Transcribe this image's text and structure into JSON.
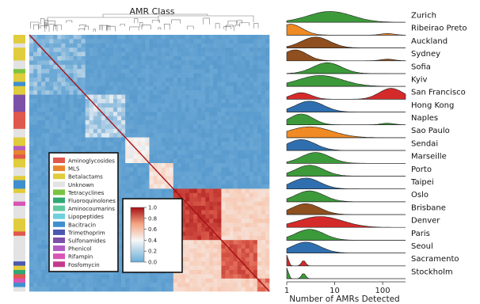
{
  "heatmap": {
    "title": "AMR Class",
    "colorbar": {
      "ticks": [
        "1.0",
        "0.8",
        "0.6",
        "0.4",
        "0.2",
        "0.0"
      ],
      "values": [
        1.0,
        0.8,
        0.6,
        0.4,
        0.2,
        0.0
      ],
      "low_color": "#4a90c8",
      "high_color": "#a50f15"
    },
    "legend": [
      {
        "label": "Aminoglycosides",
        "color": "#e0584c"
      },
      {
        "label": "MLS",
        "color": "#e8862e"
      },
      {
        "label": "Betalactams",
        "color": "#e0cc3c"
      },
      {
        "label": "Unknown",
        "color": "#e3e3e3"
      },
      {
        "label": "Tetracyclines",
        "color": "#7cc242"
      },
      {
        "label": "Fluoroquinolones",
        "color": "#2fa872"
      },
      {
        "label": "Aminocoumarins",
        "color": "#5fc9a0"
      },
      {
        "label": "Lipopeptides",
        "color": "#6fcfe0"
      },
      {
        "label": "Bacitracin",
        "color": "#3f8fcf"
      },
      {
        "label": "Trimethoprim",
        "color": "#4b58b0"
      },
      {
        "label": "Sulfonamides",
        "color": "#7c4fa8"
      },
      {
        "label": "Phenicol",
        "color": "#b05cc4"
      },
      {
        "label": "Rifampin",
        "color": "#d855b5"
      },
      {
        "label": "Fosfomycin",
        "color": "#c43a8f"
      }
    ]
  },
  "ridge": {
    "x_label": "Number of AMRs Detected",
    "x_ticks": [
      "1",
      "10",
      "100"
    ],
    "x_tick_values": [
      1,
      10,
      100
    ],
    "x_scale": "log",
    "x_range": [
      1,
      300
    ]
  },
  "chart_data": {
    "type": "area",
    "subtype": "ridgeline",
    "xlabel": "Number of AMRs Detected",
    "xscale": "log",
    "xlim": [
      1,
      300
    ],
    "series": [
      {
        "name": "Zurich",
        "color": "#3c9a3a",
        "peak": 8,
        "shape": "broad"
      },
      {
        "name": "Ribeirao Preto",
        "color": "#f08a24",
        "peak": 1.2,
        "shape": "left"
      },
      {
        "name": "Auckland",
        "color": "#8f4f1e",
        "peak": 4,
        "shape": "mid"
      },
      {
        "name": "Sydney",
        "color": "#8f4f1e",
        "peak": 1.5,
        "shape": "left"
      },
      {
        "name": "Sofia",
        "color": "#3c9a3a",
        "peak": 7,
        "shape": "mid"
      },
      {
        "name": "Kyiv",
        "color": "#3c9a3a",
        "peak": 5,
        "shape": "broad"
      },
      {
        "name": "San Francisco",
        "color": "#d42a2a",
        "peak": 150,
        "shape": "right"
      },
      {
        "name": "Hong Kong",
        "color": "#2f6fb0",
        "peak": 3,
        "shape": "mid"
      },
      {
        "name": "Naples",
        "color": "#3c9a3a",
        "peak": 2,
        "shape": "left"
      },
      {
        "name": "Sao Paulo",
        "color": "#f08a24",
        "peak": 3,
        "shape": "broad"
      },
      {
        "name": "Sendai",
        "color": "#2f6fb0",
        "peak": 2,
        "shape": "mid"
      },
      {
        "name": "Marseille",
        "color": "#3c9a3a",
        "peak": 4,
        "shape": "mid"
      },
      {
        "name": "Porto",
        "color": "#3c9a3a",
        "peak": 3,
        "shape": "mid"
      },
      {
        "name": "Taipei",
        "color": "#2f6fb0",
        "peak": 2.5,
        "shape": "mid"
      },
      {
        "name": "Oslo",
        "color": "#3c9a3a",
        "peak": 3,
        "shape": "mid"
      },
      {
        "name": "Brisbane",
        "color": "#8f4f1e",
        "peak": 2.5,
        "shape": "mid"
      },
      {
        "name": "Denver",
        "color": "#d42a2a",
        "peak": 5,
        "shape": "broad"
      },
      {
        "name": "Paris",
        "color": "#3c9a3a",
        "peak": 3,
        "shape": "mid"
      },
      {
        "name": "Seoul",
        "color": "#2f6fb0",
        "peak": 2.5,
        "shape": "mid"
      },
      {
        "name": "Sacramento",
        "color": "#d42a2a",
        "peak": 1.1,
        "shape": "spikes"
      },
      {
        "name": "Stockholm",
        "color": "#3c9a3a",
        "peak": 1.2,
        "shape": "spikes"
      }
    ]
  }
}
